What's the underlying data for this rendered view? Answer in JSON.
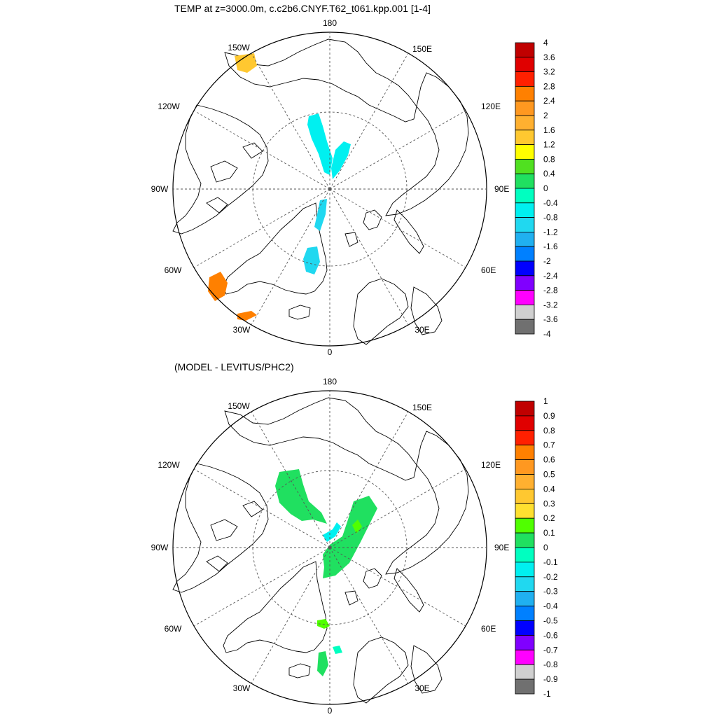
{
  "chart_data": [
    {
      "type": "heatmap",
      "projection": "north-polar-stereographic",
      "title": "TEMP at z=3000.0m, c.c2b6.CNYF.T62_t061.kpp.001 [1-4]",
      "longitude_labels": [
        "180",
        "150E",
        "120E",
        "90E",
        "60E",
        "30E",
        "0",
        "30W",
        "60W",
        "90W",
        "120W",
        "150W"
      ],
      "colorbar": {
        "levels": [
          "4",
          "3.6",
          "3.2",
          "2.8",
          "2.4",
          "2",
          "1.6",
          "1.2",
          "0.8",
          "0.4",
          "0",
          "-0.4",
          "-0.8",
          "-1.2",
          "-1.6",
          "-2",
          "-2.4",
          "-2.8",
          "-3.2",
          "-3.6",
          "-4"
        ],
        "colors": [
          "#c00000",
          "#e00000",
          "#ff2000",
          "#ff8000",
          "#ff9820",
          "#ffb030",
          "#ffc830",
          "#ffff00",
          "#50e020",
          "#20e060",
          "#00ffc0",
          "#00f0f0",
          "#20d8f0",
          "#20b0f0",
          "#0080ff",
          "#0000ff",
          "#8000ff",
          "#ff00ff",
          "#d0d0d0",
          "#707070"
        ]
      },
      "regions": [
        {
          "name": "central-arctic-patch",
          "value": -0.6
        },
        {
          "name": "lomonosov-ridge-patch",
          "value": -0.6
        },
        {
          "name": "fram-strait-patch",
          "value": -1.0
        },
        {
          "name": "greenland-sea-patch",
          "value": -1.0
        },
        {
          "name": "bering-patch",
          "value": 1.4
        },
        {
          "name": "labrador-patch",
          "value": 2.6
        },
        {
          "name": "irminger-patch",
          "value": 2.5
        }
      ]
    },
    {
      "type": "heatmap",
      "projection": "north-polar-stereographic",
      "title": "(MODEL - LEVITUS/PHC2)",
      "longitude_labels": [
        "180",
        "150E",
        "120E",
        "90E",
        "60E",
        "30E",
        "0",
        "30W",
        "60W",
        "90W",
        "120W",
        "150W"
      ],
      "colorbar": {
        "levels": [
          "1",
          "0.9",
          "0.8",
          "0.7",
          "0.6",
          "0.5",
          "0.4",
          "0.3",
          "0.2",
          "0.1",
          "0",
          "-0.1",
          "-0.2",
          "-0.3",
          "-0.4",
          "-0.5",
          "-0.6",
          "-0.7",
          "-0.8",
          "-0.9",
          "-1"
        ],
        "colors": [
          "#c00000",
          "#e00000",
          "#ff2000",
          "#ff8000",
          "#ff9820",
          "#ffb030",
          "#ffc830",
          "#ffe030",
          "#50ff00",
          "#20e060",
          "#00ffc0",
          "#00f0f0",
          "#20d8f0",
          "#20b0f0",
          "#0080ff",
          "#0000ff",
          "#8000ff",
          "#ff00ff",
          "#d0d0d0",
          "#707070"
        ]
      },
      "regions": [
        {
          "name": "canada-basin-patch",
          "value": 0.05
        },
        {
          "name": "eurasian-basin-patch",
          "value": 0.05
        },
        {
          "name": "eurasian-basin-core",
          "value": 0.15
        },
        {
          "name": "makarov-cyan-patch",
          "value": -0.15
        },
        {
          "name": "fram-strait-patch",
          "value": 0.15
        },
        {
          "name": "greenland-sea-patch",
          "value": 0.05
        },
        {
          "name": "greenland-sea-cyan",
          "value": -0.1
        }
      ]
    }
  ]
}
